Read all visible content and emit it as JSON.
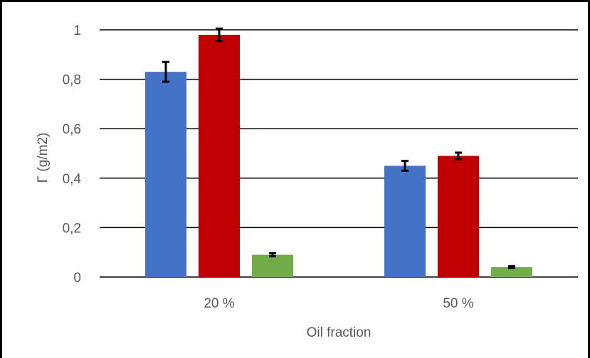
{
  "chart_data": {
    "type": "bar",
    "title": "",
    "xlabel": "Oil fraction",
    "ylabel": "Γ (g/m2)",
    "categories": [
      "20 %",
      "50 %"
    ],
    "ylim": [
      0,
      1
    ],
    "yticks": [
      0,
      0.2,
      0.4,
      0.6,
      0.8,
      1
    ],
    "ytick_labels": [
      "0",
      "0,2",
      "0,4",
      "0,6",
      "0,8",
      "1"
    ],
    "grid": true,
    "legend": "none",
    "series": [
      {
        "color": "#4472C4",
        "values": [
          0.83,
          0.45
        ],
        "errors": [
          0.04,
          0.02
        ]
      },
      {
        "color": "#C00000",
        "values": [
          0.98,
          0.49
        ],
        "errors": [
          0.025,
          0.013
        ]
      },
      {
        "color": "#70AD47",
        "values": [
          0.09,
          0.04
        ],
        "errors": [
          0.006,
          0.004
        ]
      }
    ]
  }
}
